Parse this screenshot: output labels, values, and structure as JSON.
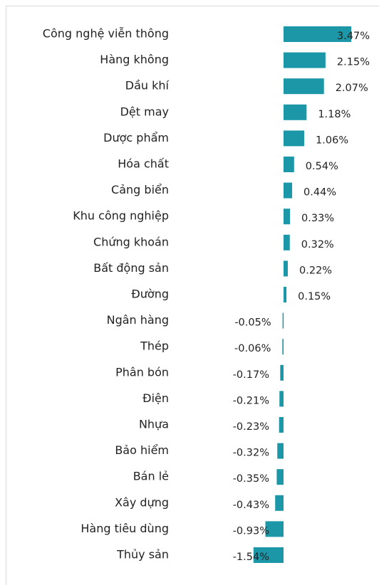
{
  "chart_data": {
    "type": "hbar",
    "color": "#1b97a8",
    "categories": [
      "Công nghệ viễn thông",
      "Hàng không",
      "Dầu khí",
      "Dệt may",
      "Dược phẩm",
      "Hóa chất",
      "Cảng biển",
      "Khu công nghiệp",
      "Chứng khoán",
      "Bất động sản",
      "Đường",
      "Ngân hàng",
      "Thép",
      "Phân bón",
      "Điện",
      "Nhựa",
      "Bảo hiểm",
      "Bán lẻ",
      "Xây dựng",
      "Hàng tiêu dùng",
      "Thủy sản"
    ],
    "values": [
      3.47,
      2.15,
      2.07,
      1.18,
      1.06,
      0.54,
      0.44,
      0.33,
      0.32,
      0.22,
      0.15,
      -0.05,
      -0.06,
      -0.17,
      -0.21,
      -0.23,
      -0.32,
      -0.35,
      -0.43,
      -0.93,
      -1.54
    ],
    "value_labels": [
      "3.47%",
      "2.15%",
      "2.07%",
      "1.18%",
      "1.06%",
      "0.54%",
      "0.44%",
      "0.33%",
      "0.32%",
      "0.22%",
      "0.15%",
      "-0.05%",
      "-0.06%",
      "-0.17%",
      "-0.21%",
      "-0.23%",
      "-0.32%",
      "-0.35%",
      "-0.43%",
      "-0.93%",
      "-1.54%"
    ]
  }
}
